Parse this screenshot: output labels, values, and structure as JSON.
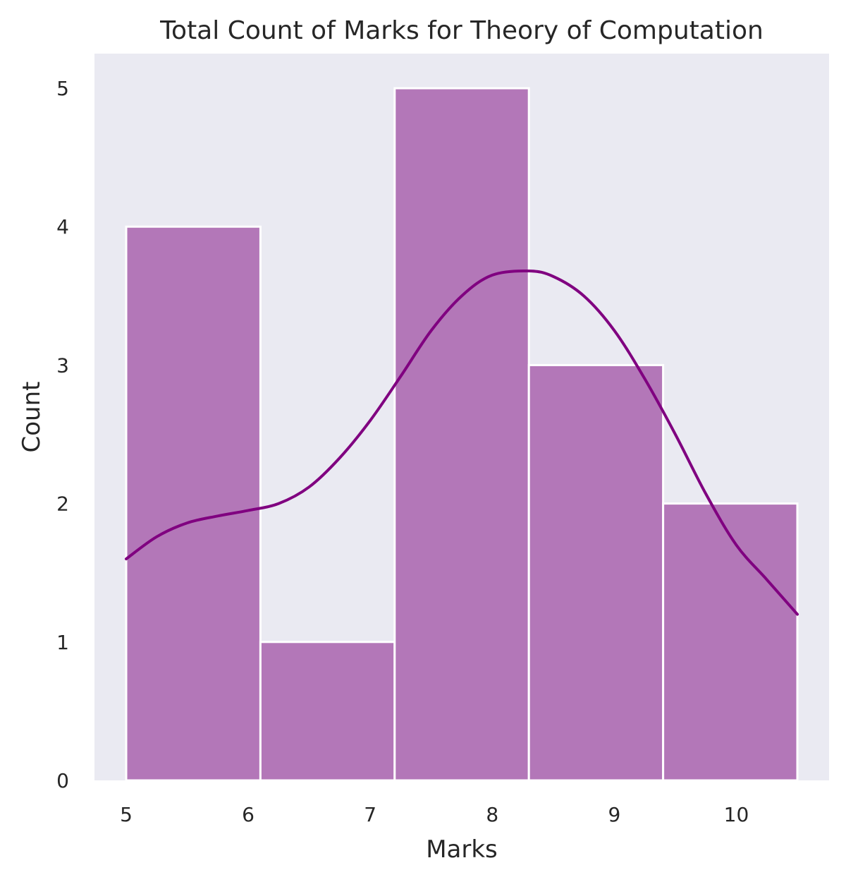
{
  "chart_data": {
    "type": "bar",
    "subtype": "histogram-with-kde",
    "title": "Total Count of Marks for Theory of Computation",
    "xlabel": "Marks",
    "ylabel": "Count",
    "xlim": [
      4.74,
      10.76
    ],
    "ylim": [
      0,
      5.25
    ],
    "xticks": [
      5,
      6,
      7,
      8,
      9,
      10
    ],
    "yticks": [
      0,
      1,
      2,
      3,
      4,
      5
    ],
    "grid": false,
    "bar_color": "#b377b8",
    "kde_color": "#800080",
    "background_color": "#eaeaf2",
    "bins": [
      {
        "x0": 5.0,
        "x1": 6.1,
        "count": 4
      },
      {
        "x0": 6.1,
        "x1": 7.2,
        "count": 1
      },
      {
        "x0": 7.2,
        "x1": 8.3,
        "count": 5
      },
      {
        "x0": 8.3,
        "x1": 9.4,
        "count": 3
      },
      {
        "x0": 9.4,
        "x1": 10.5,
        "count": 2
      }
    ],
    "kde": {
      "x": [
        5.0,
        5.25,
        5.5,
        5.75,
        6.0,
        6.25,
        6.5,
        6.75,
        7.0,
        7.25,
        7.5,
        7.75,
        8.0,
        8.3,
        8.5,
        8.75,
        9.0,
        9.25,
        9.5,
        9.75,
        10.0,
        10.25,
        10.5
      ],
      "y": [
        1.6,
        1.76,
        1.86,
        1.91,
        1.95,
        2.0,
        2.12,
        2.33,
        2.6,
        2.92,
        3.25,
        3.5,
        3.65,
        3.68,
        3.64,
        3.5,
        3.25,
        2.9,
        2.5,
        2.07,
        1.7,
        1.45,
        1.2
      ]
    }
  }
}
